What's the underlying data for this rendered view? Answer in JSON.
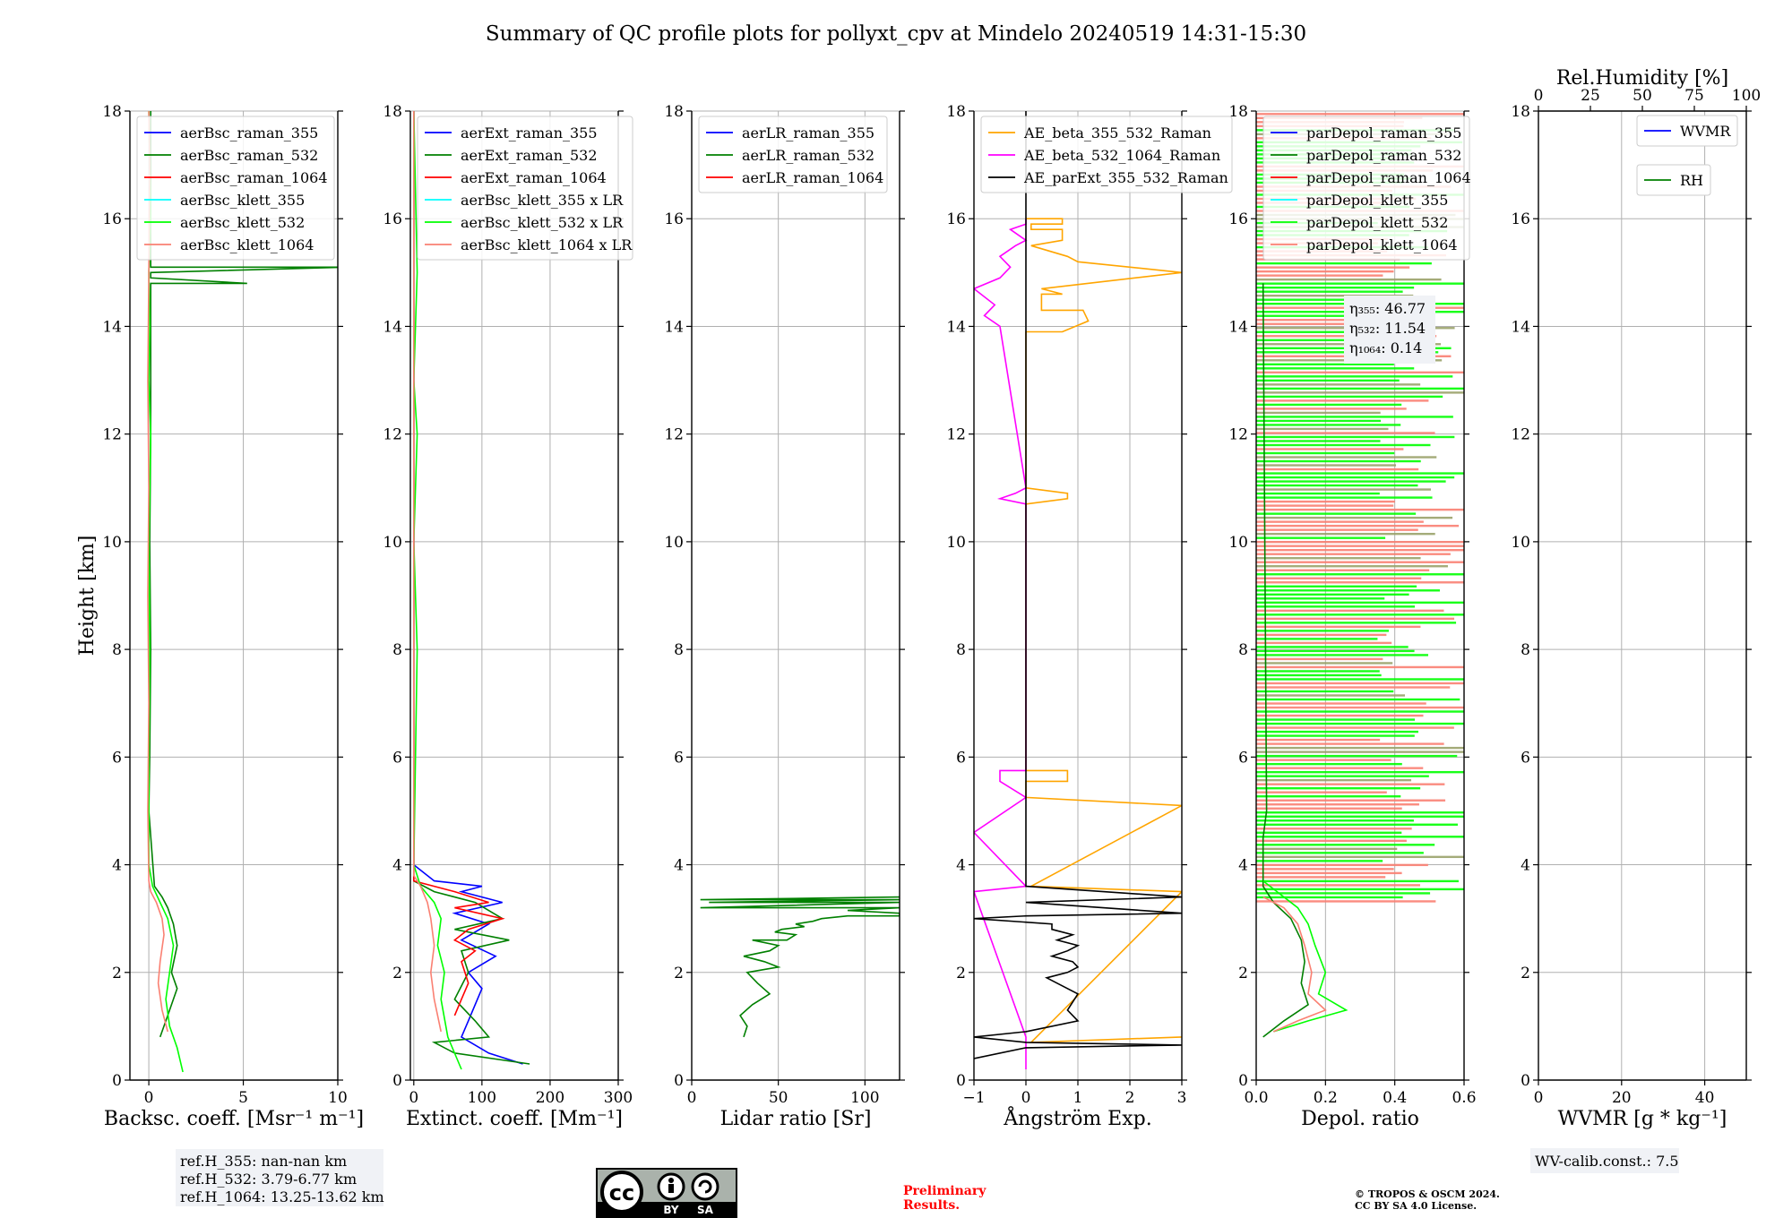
{
  "title": "Summary of QC profile plots for pollyxt_cpv at Mindelo 20240519 14:31-15:30",
  "colors": {
    "blue": "#0000ff",
    "green": "#008000",
    "red": "#ff0000",
    "cyan": "#00ffff",
    "lime": "#00ff00",
    "salmon": "#fa8072",
    "orange": "#ffa500",
    "magenta": "#ff00ff",
    "black": "#000000",
    "grid": "#b0b0b0"
  },
  "chart_data": [
    {
      "type": "line",
      "id": "bsc",
      "xlabel": "Backsc. coeff. [Msr⁻¹ m⁻¹]",
      "ylabel": "Height [km]",
      "xlim": [
        -1,
        10
      ],
      "ylim": [
        0,
        18
      ],
      "xticks": [
        0,
        5,
        10
      ],
      "yticks": [
        0,
        2,
        4,
        6,
        8,
        10,
        12,
        14,
        16,
        18
      ],
      "legend_position": "top-left",
      "series": [
        {
          "name": "aerBsc_raman_355",
          "color": "blue",
          "x": [],
          "y": []
        },
        {
          "name": "aerBsc_raman_532",
          "color": "green",
          "x": [
            0.6,
            1.0,
            1.5,
            1.2,
            1.5,
            1.3,
            1.0,
            0.7,
            0.3,
            0.0,
            0.05,
            0.1,
            0.05,
            0.1,
            0.1,
            0.1,
            0.1,
            0.1,
            0.1,
            0.1,
            5.2,
            0.1,
            0.1,
            10.5,
            0.1,
            0.1,
            0.1,
            0.1
          ],
          "y": [
            0.8,
            1.2,
            1.7,
            2.0,
            2.5,
            2.9,
            3.2,
            3.4,
            3.6,
            5,
            6,
            8,
            10,
            12,
            13.9,
            14.2,
            14.4,
            14.5,
            14.6,
            14.8,
            14.8,
            14.9,
            15.0,
            15.1,
            15.1,
            15.2,
            15.6,
            18
          ]
        },
        {
          "name": "aerBsc_raman_1064",
          "color": "red",
          "x": [],
          "y": []
        },
        {
          "name": "aerBsc_klett_355",
          "color": "cyan",
          "x": [],
          "y": []
        },
        {
          "name": "aerBsc_klett_532",
          "color": "lime",
          "x": [
            1.8,
            1.5,
            1.1,
            0.9,
            1.1,
            1.3,
            1.0,
            0.6,
            0.2,
            0.0,
            0.0,
            0.05,
            0.0,
            0.1,
            0.0,
            0.05,
            0.0,
            0.1,
            0.0
          ],
          "y": [
            0.15,
            0.6,
            1.0,
            1.5,
            2.0,
            2.5,
            3.0,
            3.3,
            3.6,
            4,
            6,
            8,
            10,
            12,
            13,
            14,
            15,
            16,
            18
          ]
        },
        {
          "name": "aerBsc_klett_1064",
          "color": "salmon",
          "x": [
            1.0,
            0.7,
            0.5,
            0.6,
            0.8,
            0.7,
            0.4,
            0.1,
            0.0,
            -0.05,
            0.0,
            -0.05,
            0.0,
            -0.05,
            0.0,
            0.05,
            0.0
          ],
          "y": [
            0.9,
            1.3,
            1.8,
            2.2,
            2.7,
            3.0,
            3.3,
            3.5,
            3.7,
            5,
            7,
            9,
            11,
            13,
            15,
            17,
            18
          ]
        }
      ]
    },
    {
      "type": "line",
      "id": "ext",
      "xlabel": "Extinct. coeff. [Mm⁻¹]",
      "xlim": [
        -5,
        300
      ],
      "ylim": [
        0,
        18
      ],
      "xticks": [
        0,
        100,
        200,
        300
      ],
      "yticks": [
        0,
        2,
        4,
        6,
        8,
        10,
        12,
        14,
        16,
        18
      ],
      "legend_position": "top-left",
      "series": [
        {
          "name": "aerExt_raman_355",
          "color": "blue",
          "x": [
            160,
            110,
            70,
            80,
            90,
            100,
            80,
            120,
            70,
            110,
            60,
            130,
            70,
            100,
            30,
            0,
            0
          ],
          "y": [
            0.3,
            0.5,
            0.8,
            1.1,
            1.4,
            1.7,
            2.0,
            2.3,
            2.6,
            2.9,
            3.1,
            3.3,
            3.5,
            3.6,
            3.7,
            4,
            18
          ]
        },
        {
          "name": "aerExt_raman_532",
          "color": "green",
          "x": [
            170,
            60,
            30,
            110,
            90,
            60,
            80,
            70,
            140,
            60,
            130,
            90,
            30,
            0,
            0
          ],
          "y": [
            0.3,
            0.5,
            0.7,
            0.8,
            1.1,
            1.5,
            2.0,
            2.4,
            2.6,
            2.8,
            3.0,
            3.3,
            3.5,
            3.7,
            18
          ]
        },
        {
          "name": "aerExt_raman_1064",
          "color": "red",
          "x": [
            60,
            70,
            80,
            75,
            70,
            90,
            60,
            80,
            130,
            60,
            110,
            60,
            0,
            0
          ],
          "y": [
            1.2,
            1.5,
            1.8,
            2.0,
            2.2,
            2.4,
            2.6,
            2.8,
            3.0,
            3.2,
            3.3,
            3.5,
            3.7,
            18
          ]
        },
        {
          "name": "aerBsc_klett_355 x LR",
          "color": "cyan",
          "x": [],
          "y": []
        },
        {
          "name": "aerBsc_klett_532 x LR",
          "color": "lime",
          "x": [
            70,
            50,
            40,
            45,
            35,
            40,
            30,
            10,
            0,
            5,
            0,
            5,
            0,
            5,
            0
          ],
          "y": [
            0.2,
            0.8,
            1.5,
            2.0,
            2.5,
            3.0,
            3.3,
            3.6,
            4,
            8,
            10,
            12,
            13,
            15,
            18
          ]
        },
        {
          "name": "aerBsc_klett_1064 x LR",
          "color": "salmon",
          "x": [
            40,
            30,
            25,
            30,
            25,
            20,
            10,
            0,
            0
          ],
          "y": [
            0.9,
            1.5,
            2.0,
            2.5,
            3.0,
            3.3,
            3.6,
            3.8,
            18
          ]
        }
      ]
    },
    {
      "type": "line",
      "id": "lr",
      "xlabel": "Lidar ratio [Sr]",
      "xlim": [
        0,
        120
      ],
      "ylim": [
        0,
        18
      ],
      "xticks": [
        0,
        50,
        100
      ],
      "yticks": [
        0,
        2,
        4,
        6,
        8,
        10,
        12,
        14,
        16,
        18
      ],
      "legend_position": "top-left",
      "series": [
        {
          "name": "aerLR_raman_355",
          "color": "blue",
          "x": [],
          "y": []
        },
        {
          "name": "aerLR_raman_532",
          "color": "green",
          "x": [
            30,
            32,
            28,
            35,
            40,
            45,
            38,
            32,
            50,
            42,
            30,
            45,
            50,
            35,
            55,
            60,
            48,
            52,
            65,
            60,
            70,
            75,
            90,
            120,
            120,
            90,
            120,
            5,
            120,
            10,
            120,
            5,
            120
          ],
          "y": [
            0.8,
            1.0,
            1.2,
            1.4,
            1.5,
            1.6,
            1.8,
            2.0,
            2.1,
            2.2,
            2.3,
            2.4,
            2.5,
            2.6,
            2.6,
            2.7,
            2.75,
            2.8,
            2.85,
            2.9,
            2.95,
            3.0,
            3.05,
            3.05,
            3.1,
            3.15,
            3.2,
            3.2,
            3.3,
            3.3,
            3.35,
            3.35,
            3.4
          ]
        },
        {
          "name": "aerLR_raman_1064",
          "color": "red",
          "x": [],
          "y": []
        }
      ]
    },
    {
      "type": "line",
      "id": "ae",
      "xlabel": "Ångström Exp.",
      "xlim": [
        -1,
        3
      ],
      "ylim": [
        0,
        18
      ],
      "xticks": [
        -1,
        0,
        1,
        2,
        3
      ],
      "yticks": [
        0,
        2,
        4,
        6,
        8,
        10,
        12,
        14,
        16,
        18
      ],
      "legend_position": "top-left",
      "series": [
        {
          "name": "AE_beta_355_532_Raman",
          "color": "orange",
          "x": [
            3,
            0.1,
            3,
            0.1,
            3,
            0.0,
            0.0,
            0.8,
            0.8,
            0.0,
            0.0,
            0.8,
            0.8,
            0.0,
            0.0,
            0.7,
            1.2,
            1.1,
            0.3,
            0.3,
            0.7,
            0.3,
            3.0,
            1.0,
            0.8,
            0.1,
            0.7,
            0.7,
            0.1,
            0.1,
            0.7,
            0.7,
            0.0
          ],
          "y": [
            0.8,
            0.7,
            3.5,
            3.6,
            5.1,
            5.25,
            5.55,
            5.55,
            5.75,
            5.75,
            10.7,
            10.8,
            10.9,
            11.0,
            13.9,
            13.9,
            14.1,
            14.3,
            14.3,
            14.6,
            14.6,
            14.7,
            15.0,
            15.2,
            15.3,
            15.5,
            15.6,
            15.8,
            15.8,
            15.9,
            15.9,
            16.0,
            16.0
          ]
        },
        {
          "name": "AE_beta_532_1064_Raman",
          "color": "magenta",
          "x": [
            0.0,
            0.0,
            -1,
            0.0,
            -1,
            0.0,
            -0.5,
            -0.5,
            0.0,
            0.0,
            -0.5,
            -0.2,
            0.0,
            -0.5,
            -0.8,
            -0.6,
            -1.0,
            -0.5,
            -0.3,
            -0.5,
            -0.2,
            0.0,
            -0.3,
            0.0,
            0.0
          ],
          "y": [
            0.2,
            0.8,
            3.5,
            3.6,
            4.6,
            5.25,
            5.55,
            5.75,
            5.75,
            10.7,
            10.8,
            10.9,
            11.0,
            14.0,
            14.2,
            14.4,
            14.7,
            14.9,
            15.1,
            15.3,
            15.5,
            15.6,
            15.8,
            15.9,
            16.0
          ]
        },
        {
          "name": "AE_parExt_355_532_Raman",
          "color": "black",
          "x": [
            -1,
            0.0,
            3.0,
            0.0,
            -1,
            0.0,
            1.0,
            0.8,
            1.0,
            0.6,
            0.4,
            0.8,
            1.0,
            0.9,
            0.5,
            0.8,
            1.0,
            0.6,
            0.9,
            0.5,
            0.5,
            -1,
            0.0,
            3.0,
            0.0,
            3.0,
            0.0,
            0.0
          ],
          "y": [
            0.4,
            0.6,
            0.65,
            0.7,
            0.8,
            0.9,
            1.1,
            1.3,
            1.6,
            1.8,
            1.9,
            2.0,
            2.1,
            2.2,
            2.3,
            2.4,
            2.5,
            2.6,
            2.7,
            2.8,
            2.9,
            3.0,
            3.05,
            3.1,
            3.3,
            3.4,
            3.6,
            18
          ]
        }
      ]
    },
    {
      "type": "line",
      "id": "dep",
      "xlabel": "Depol. ratio",
      "xlim": [
        0,
        0.6
      ],
      "ylim": [
        0,
        18
      ],
      "xticks": [
        0.0,
        0.2,
        0.4,
        0.6
      ],
      "xticklabels": [
        "0.0",
        "0.2",
        "0.4",
        "0.6"
      ],
      "yticks": [
        0,
        2,
        4,
        6,
        8,
        10,
        12,
        14,
        16,
        18
      ],
      "legend_position": "top-left",
      "annotations": [
        "η₃₅₅: 46.77",
        "η₅₃₂: 11.54",
        "η₁₀₆₄: 0.14"
      ],
      "series": [
        {
          "name": "parDepol_raman_355",
          "color": "blue",
          "x": [],
          "y": []
        },
        {
          "name": "parDepol_raman_532",
          "color": "green",
          "x": [
            0.02,
            0.08,
            0.15,
            0.13,
            0.14,
            0.13,
            0.1,
            0.05,
            0.02,
            0.02,
            0.03,
            0.02
          ],
          "y": [
            0.8,
            1.1,
            1.4,
            1.8,
            2.2,
            2.6,
            3.0,
            3.3,
            3.6,
            4.5,
            5.0,
            14.8
          ]
        },
        {
          "name": "parDepol_raman_1064",
          "color": "red",
          "x": [],
          "y": []
        },
        {
          "name": "parDepol_klett_355",
          "color": "cyan",
          "x": [],
          "y": []
        },
        {
          "name": "parDepol_klett_532",
          "color": "lime",
          "x": [
            0.05,
            0.15,
            0.26,
            0.18,
            0.2,
            0.17,
            0.15,
            0.12,
            0.06,
            0.02
          ],
          "y": [
            0.9,
            1.1,
            1.3,
            1.6,
            2.0,
            2.5,
            2.9,
            3.2,
            3.5,
            3.7
          ]
        },
        {
          "name": "parDepol_klett_1064",
          "color": "salmon",
          "x": [
            0.05,
            0.12,
            0.2,
            0.15,
            0.16,
            0.14,
            0.12,
            0.08,
            0.02
          ],
          "y": [
            0.9,
            1.1,
            1.3,
            1.6,
            2.0,
            2.5,
            2.9,
            3.2,
            3.4
          ]
        }
      ]
    },
    {
      "type": "line",
      "id": "wv",
      "xlabel": "WVMR [g * kg⁻¹]",
      "xlim": [
        0,
        50
      ],
      "ylim": [
        0,
        18
      ],
      "xticks": [
        0,
        20,
        40
      ],
      "yticks": [
        0,
        2,
        4,
        6,
        8,
        10,
        12,
        14,
        16,
        18
      ],
      "top_axis": {
        "label": "Rel.Humidity [%]",
        "xlim": [
          0,
          100
        ],
        "xticks": [
          0,
          25,
          50,
          75,
          100
        ]
      },
      "legend_position": "top-right",
      "series": [
        {
          "name": "WVMR",
          "color": "blue",
          "x": [],
          "y": []
        },
        {
          "name": "RH",
          "color": "green",
          "x": [],
          "y": []
        }
      ]
    }
  ],
  "notes": {
    "ref_h_355": "ref.H_355: nan-nan km",
    "ref_h_532": "ref.H_532: 3.79-6.77 km",
    "ref_h_1064": "ref.H_1064: 13.25-13.62 km",
    "cc_text": "cc",
    "by_label": "BY",
    "sa_label": "SA",
    "prelim_1": "Preliminary",
    "prelim_2": "Results.",
    "copyright_1": "© TROPOS & OSCM 2024.",
    "copyright_2": "CC BY SA 4.0 License.",
    "wv_calib": "WV-calib.const.: 7.5"
  }
}
